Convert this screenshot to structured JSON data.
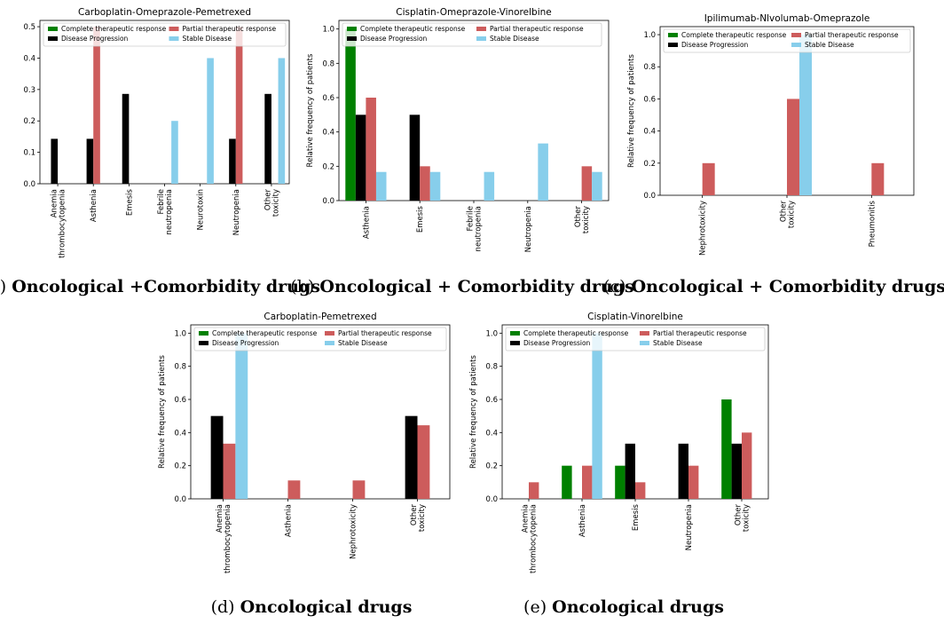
{
  "captions": [
    {
      "prefix": "(a) ",
      "bold": "Oncological +Comorbidity drugs"
    },
    {
      "prefix": "(b) ",
      "bold": "Oncological + Comorbidity drugs"
    },
    {
      "prefix": "(c) ",
      "bold": "Oncological + Comorbidity drugs"
    },
    {
      "prefix": "(d) ",
      "bold": "Oncological drugs"
    },
    {
      "prefix": "(e) ",
      "bold": "Oncological drugs"
    }
  ],
  "colors": {
    "Complete therapeutic response": "#008000",
    "Disease Progression": "#000000",
    "Partial therapeutic response": "#cd5c5c",
    "Stable Disease": "#87ceeb"
  },
  "chart_data": [
    {
      "type": "bar",
      "title": "Carboplatin-Omeprazole-Pemetrexed",
      "ylabel": "",
      "ylim": [
        0,
        0.52
      ],
      "yticks": [
        "0.0",
        "0.1",
        "0.2",
        "0.3",
        "0.4",
        "0.5"
      ],
      "categories": [
        "Anemia\nthrombocytopenia",
        "Asthenia",
        "Emesis",
        "Febrile\nneutropenia",
        "Neurotoxin",
        "Neutropenia",
        "Other\ntoxicity"
      ],
      "legend_entries": [
        "Complete therapeutic response",
        "Partial therapeutic response",
        "Disease Progression",
        "Stable Disease"
      ],
      "series": [
        {
          "name": "Complete therapeutic response",
          "values": [
            0,
            0,
            0,
            0,
            0,
            0,
            0
          ]
        },
        {
          "name": "Disease Progression",
          "values": [
            0.143,
            0.143,
            0.286,
            0,
            0,
            0.143,
            0.286
          ]
        },
        {
          "name": "Partial therapeutic response",
          "values": [
            0,
            0.5,
            0,
            0,
            0,
            0.5,
            0
          ]
        },
        {
          "name": "Stable Disease",
          "values": [
            0,
            0,
            0,
            0.2,
            0.4,
            0,
            0.4
          ]
        }
      ]
    },
    {
      "type": "bar",
      "title": "Cisplatin-Omeprazole-Vinorelbine",
      "ylabel": "Relative frequency of patients",
      "ylim": [
        0,
        1.05
      ],
      "yticks": [
        "0.0",
        "0.2",
        "0.4",
        "0.6",
        "0.8",
        "1.0"
      ],
      "categories": [
        "Asthenia",
        "Emesis",
        "Febrile\nneutropenia",
        "Neutropenia",
        "Other\ntoxicity"
      ],
      "legend_entries": [
        "Complete therapeutic response",
        "Partial therapeutic response",
        "Disease Progression",
        "Stable Disease"
      ],
      "series": [
        {
          "name": "Complete therapeutic response",
          "values": [
            1.0,
            0,
            0,
            0,
            0
          ]
        },
        {
          "name": "Disease Progression",
          "values": [
            0.5,
            0.5,
            0,
            0,
            0
          ]
        },
        {
          "name": "Partial therapeutic response",
          "values": [
            0.6,
            0.2,
            0,
            0,
            0.2
          ]
        },
        {
          "name": "Stable Disease",
          "values": [
            0.167,
            0.167,
            0.167,
            0.333,
            0.167
          ]
        }
      ]
    },
    {
      "type": "bar",
      "title": "Ipilimumab-Nlvolumab-Omeprazole",
      "ylabel": "Relative frequency of patients",
      "ylim": [
        0,
        1.05
      ],
      "yticks": [
        "0.0",
        "0.2",
        "0.4",
        "0.6",
        "0.8",
        "1.0"
      ],
      "categories": [
        "Nephrotoxicity",
        "Other\ntoxicity",
        "Pneumonitis"
      ],
      "legend_entries": [
        "Complete therapeutic response",
        "Partial therapeutic response",
        "Disease Progression",
        "Stable Disease"
      ],
      "series": [
        {
          "name": "Complete therapeutic response",
          "values": [
            0,
            0,
            0
          ]
        },
        {
          "name": "Disease Progression",
          "values": [
            0,
            0,
            0
          ]
        },
        {
          "name": "Partial therapeutic response",
          "values": [
            0.2,
            0.6,
            0.2
          ]
        },
        {
          "name": "Stable Disease",
          "values": [
            0,
            1.0,
            0
          ]
        }
      ]
    },
    {
      "type": "bar",
      "title": "Carboplatin-Pemetrexed",
      "ylabel": "Relative frequency of patients",
      "ylim": [
        0,
        1.05
      ],
      "yticks": [
        "0.0",
        "0.2",
        "0.4",
        "0.6",
        "0.8",
        "1.0"
      ],
      "categories": [
        "Anemia\nthrombocytopenia",
        "Asthenia",
        "Nephrotoxicity",
        "Other\ntoxicity"
      ],
      "legend_entries": [
        "Complete therapeutic response",
        "Partial therapeutic response",
        "Disease Progression",
        "Stable Disease"
      ],
      "series": [
        {
          "name": "Complete therapeutic response",
          "values": [
            0,
            0,
            0,
            0
          ]
        },
        {
          "name": "Disease Progression",
          "values": [
            0.5,
            0,
            0,
            0.5
          ]
        },
        {
          "name": "Partial therapeutic response",
          "values": [
            0.333,
            0.111,
            0.111,
            0.444
          ]
        },
        {
          "name": "Stable Disease",
          "values": [
            1.0,
            0,
            0,
            0
          ]
        }
      ]
    },
    {
      "type": "bar",
      "title": "Cisplatin-Vinorelbine",
      "ylabel": "Relative frequency of patients",
      "ylim": [
        0,
        1.05
      ],
      "yticks": [
        "0.0",
        "0.2",
        "0.4",
        "0.6",
        "0.8",
        "1.0"
      ],
      "categories": [
        "Anemia\nthrombocytopenia",
        "Asthenia",
        "Emesis",
        "Neutropenia",
        "Other\ntoxicity"
      ],
      "legend_entries": [
        "Complete therapeutic response",
        "Partial therapeutic response",
        "Disease Progression",
        "Stable Disease"
      ],
      "series": [
        {
          "name": "Complete therapeutic response",
          "values": [
            0,
            0.2,
            0.2,
            0,
            0.6
          ]
        },
        {
          "name": "Disease Progression",
          "values": [
            0,
            0,
            0.333,
            0.333,
            0.333
          ]
        },
        {
          "name": "Partial therapeutic response",
          "values": [
            0.1,
            0.2,
            0.1,
            0.2,
            0.4
          ]
        },
        {
          "name": "Stable Disease",
          "values": [
            0,
            1.0,
            0,
            0,
            0
          ]
        }
      ]
    }
  ]
}
